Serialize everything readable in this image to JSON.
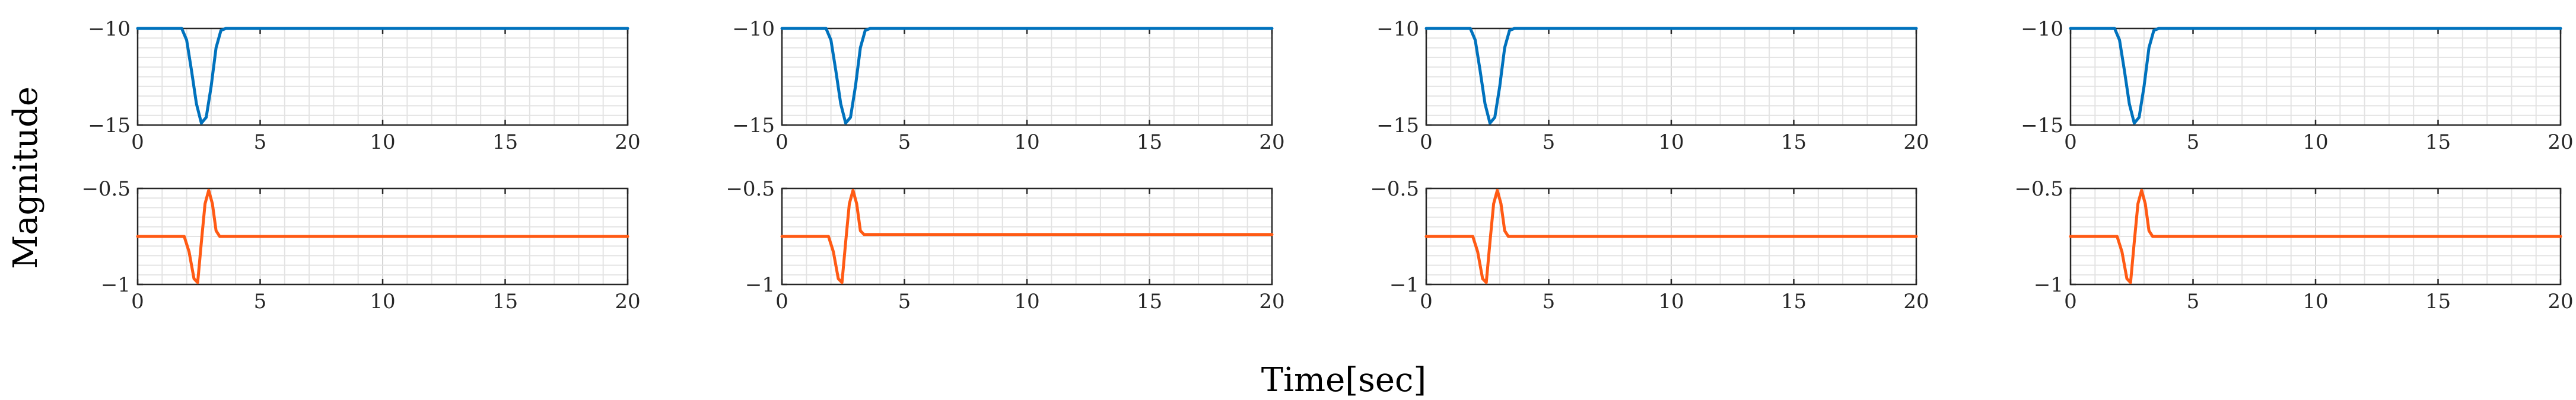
{
  "figure": {
    "xlabel": "Time[sec]",
    "ylabel": "Magnitude"
  },
  "colors": {
    "top_series": "#0072BD",
    "bottom_series": "#FF5A14",
    "grid": "#E3E3E3",
    "axes": "#262626"
  },
  "chart_data": [
    {
      "type": "line",
      "panel": "column-1-top",
      "xlim": [
        0,
        20
      ],
      "ylim": [
        -15,
        -10
      ],
      "xticks": [
        0,
        5,
        10,
        15,
        20
      ],
      "yticks": [
        -15,
        -10
      ],
      "xtick_labels": [
        "0",
        "5",
        "10",
        "15",
        "20"
      ],
      "ytick_labels": [
        "−15",
        "−10"
      ],
      "grid": true,
      "series": [
        {
          "x": [
            0,
            1.8,
            2.0,
            2.2,
            2.4,
            2.6,
            2.8,
            3.0,
            3.2,
            3.4,
            3.6,
            20
          ],
          "y": [
            -10,
            -10,
            -10.6,
            -12.2,
            -13.9,
            -14.9,
            -14.6,
            -13.0,
            -11.0,
            -10.1,
            -10,
            -10
          ]
        }
      ]
    },
    {
      "type": "line",
      "panel": "column-1-bottom",
      "xlim": [
        0,
        20
      ],
      "ylim": [
        -1,
        -0.5
      ],
      "xticks": [
        0,
        5,
        10,
        15,
        20
      ],
      "yticks": [
        -1,
        -0.5
      ],
      "xtick_labels": [
        "0",
        "5",
        "10",
        "15",
        "20"
      ],
      "ytick_labels": [
        "−1",
        "−0.5"
      ],
      "grid": true,
      "series": [
        {
          "x": [
            0,
            1.9,
            2.1,
            2.3,
            2.45,
            2.6,
            2.75,
            2.9,
            3.05,
            3.2,
            3.35,
            20
          ],
          "y": [
            -0.75,
            -0.75,
            -0.83,
            -0.97,
            -0.99,
            -0.78,
            -0.58,
            -0.51,
            -0.58,
            -0.72,
            -0.75,
            -0.75
          ]
        }
      ]
    },
    {
      "type": "line",
      "panel": "column-2-top",
      "xlim": [
        0,
        20
      ],
      "ylim": [
        -15,
        -10
      ],
      "xticks": [
        0,
        5,
        10,
        15,
        20
      ],
      "yticks": [
        -15,
        -10
      ],
      "xtick_labels": [
        "0",
        "5",
        "10",
        "15",
        "20"
      ],
      "ytick_labels": [
        "−15",
        "−10"
      ],
      "grid": true,
      "series": [
        {
          "x": [
            0,
            1.8,
            2.0,
            2.2,
            2.4,
            2.6,
            2.8,
            3.0,
            3.2,
            3.4,
            3.6,
            20
          ],
          "y": [
            -10,
            -10,
            -10.6,
            -12.2,
            -13.9,
            -14.9,
            -14.6,
            -13.0,
            -11.0,
            -10.1,
            -10,
            -10
          ]
        }
      ]
    },
    {
      "type": "line",
      "panel": "column-2-bottom",
      "xlim": [
        0,
        20
      ],
      "ylim": [
        -1,
        -0.5
      ],
      "xticks": [
        0,
        5,
        10,
        15,
        20
      ],
      "yticks": [
        -1,
        -0.5
      ],
      "xtick_labels": [
        "0",
        "5",
        "10",
        "15",
        "20"
      ],
      "ytick_labels": [
        "−1",
        "−0.5"
      ],
      "grid": true,
      "series": [
        {
          "x": [
            0,
            1.9,
            2.1,
            2.3,
            2.45,
            2.6,
            2.75,
            2.9,
            3.05,
            3.2,
            3.35,
            20
          ],
          "y": [
            -0.75,
            -0.75,
            -0.83,
            -0.97,
            -0.99,
            -0.78,
            -0.58,
            -0.51,
            -0.58,
            -0.72,
            -0.74,
            -0.74
          ]
        }
      ]
    },
    {
      "type": "line",
      "panel": "column-3-top",
      "xlim": [
        0,
        20
      ],
      "ylim": [
        -15,
        -10
      ],
      "xticks": [
        0,
        5,
        10,
        15,
        20
      ],
      "yticks": [
        -15,
        -10
      ],
      "xtick_labels": [
        "0",
        "5",
        "10",
        "15",
        "20"
      ],
      "ytick_labels": [
        "−15",
        "−10"
      ],
      "grid": true,
      "series": [
        {
          "x": [
            0,
            1.8,
            2.0,
            2.2,
            2.4,
            2.6,
            2.8,
            3.0,
            3.2,
            3.4,
            3.6,
            20
          ],
          "y": [
            -10,
            -10,
            -10.6,
            -12.2,
            -13.9,
            -14.9,
            -14.6,
            -13.0,
            -11.0,
            -10.1,
            -10,
            -10
          ]
        }
      ]
    },
    {
      "type": "line",
      "panel": "column-3-bottom",
      "xlim": [
        0,
        20
      ],
      "ylim": [
        -1,
        -0.5
      ],
      "xticks": [
        0,
        5,
        10,
        15,
        20
      ],
      "yticks": [
        -1,
        -0.5
      ],
      "xtick_labels": [
        "0",
        "5",
        "10",
        "15",
        "20"
      ],
      "ytick_labels": [
        "−1",
        "−0.5"
      ],
      "grid": true,
      "series": [
        {
          "x": [
            0,
            1.9,
            2.1,
            2.3,
            2.45,
            2.6,
            2.75,
            2.9,
            3.05,
            3.2,
            3.35,
            20
          ],
          "y": [
            -0.75,
            -0.75,
            -0.83,
            -0.97,
            -0.99,
            -0.78,
            -0.58,
            -0.51,
            -0.58,
            -0.72,
            -0.75,
            -0.75
          ]
        }
      ]
    },
    {
      "type": "line",
      "panel": "column-4-top",
      "xlim": [
        0,
        20
      ],
      "ylim": [
        -15,
        -10
      ],
      "xticks": [
        0,
        5,
        10,
        15,
        20
      ],
      "yticks": [
        -15,
        -10
      ],
      "xtick_labels": [
        "0",
        "5",
        "10",
        "15",
        "20"
      ],
      "ytick_labels": [
        "−15",
        "−10"
      ],
      "grid": true,
      "series": [
        {
          "x": [
            0,
            1.8,
            2.0,
            2.2,
            2.4,
            2.6,
            2.8,
            3.0,
            3.2,
            3.4,
            3.6,
            20
          ],
          "y": [
            -10,
            -10,
            -10.6,
            -12.2,
            -13.9,
            -14.9,
            -14.6,
            -13.0,
            -11.0,
            -10.1,
            -10,
            -10
          ]
        }
      ]
    },
    {
      "type": "line",
      "panel": "column-4-bottom",
      "xlim": [
        0,
        20
      ],
      "ylim": [
        -1,
        -0.5
      ],
      "xticks": [
        0,
        5,
        10,
        15,
        20
      ],
      "yticks": [
        -1,
        -0.5
      ],
      "xtick_labels": [
        "0",
        "5",
        "10",
        "15",
        "20"
      ],
      "ytick_labels": [
        "−1",
        "−0.5"
      ],
      "grid": true,
      "series": [
        {
          "x": [
            0,
            1.9,
            2.1,
            2.3,
            2.45,
            2.6,
            2.75,
            2.9,
            3.05,
            3.2,
            3.35,
            20
          ],
          "y": [
            -0.75,
            -0.75,
            -0.83,
            -0.97,
            -0.99,
            -0.78,
            -0.58,
            -0.51,
            -0.58,
            -0.72,
            -0.75,
            -0.75
          ]
        }
      ]
    }
  ]
}
